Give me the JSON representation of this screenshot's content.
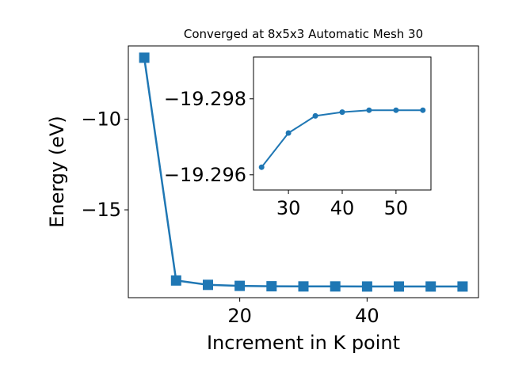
{
  "chart_data": [
    {
      "type": "line",
      "title": "Converged at 8x5x3 Automatic Mesh 30",
      "xlabel": "Increment in K point",
      "ylabel": "Energy (eV)",
      "x": [
        5,
        10,
        15,
        20,
        25,
        30,
        35,
        40,
        45,
        50,
        55
      ],
      "series": [
        {
          "values": [
            -6.6,
            -18.9,
            -19.14,
            -19.2,
            -19.22,
            -19.23,
            -19.231,
            -19.232,
            -19.232,
            -19.232,
            -19.232
          ],
          "color": "#1f77b4",
          "marker": "square"
        }
      ],
      "xlim": [
        2.5,
        57.5
      ],
      "ylim": [
        -19.85,
        -5.95
      ],
      "xticks": [
        20,
        40
      ],
      "xtick_labels": [
        "20",
        "40"
      ],
      "yticks": [
        -10,
        -15
      ],
      "ytick_labels": [
        "−10",
        "−15"
      ],
      "grid": false
    },
    {
      "type": "line",
      "title": "",
      "xlabel": "",
      "ylabel": "",
      "placement": "inset-top-right",
      "y_axis_inverted": true,
      "x": [
        25,
        30,
        35,
        40,
        45,
        50,
        55
      ],
      "series": [
        {
          "values": [
            -19.2962,
            -19.2971,
            -19.29755,
            -19.29765,
            -19.2977,
            -19.2977,
            -19.2977
          ],
          "color": "#1f77b4",
          "marker": "circle"
        }
      ],
      "xlim": [
        23.5,
        56.5
      ],
      "ylim": [
        -19.2956,
        -19.2991
      ],
      "xticks": [
        30,
        40,
        50
      ],
      "xtick_labels": [
        "30",
        "40",
        "50"
      ],
      "yticks": [
        -19.298,
        -19.296
      ],
      "ytick_labels": [
        "−19.298",
        "−19.296"
      ],
      "grid": false
    }
  ]
}
